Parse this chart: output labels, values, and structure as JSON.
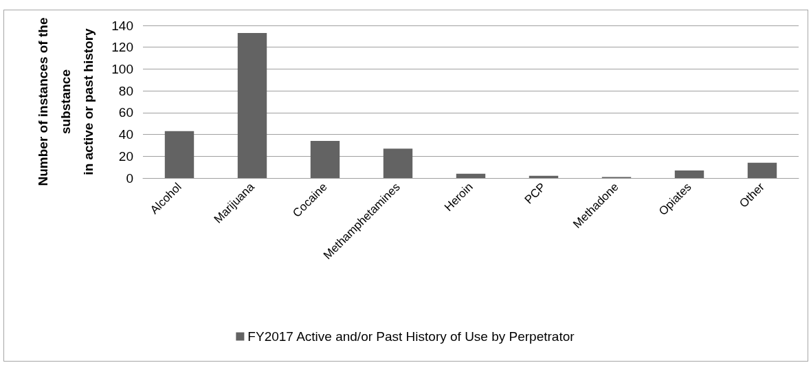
{
  "chart_data": {
    "type": "bar",
    "ylabel": "Number of instances of the\nsubstance\nin active or past history",
    "categories": [
      "Alcohol",
      "Marijuana",
      "Cocaine",
      "Methamphetamines",
      "Heroin",
      "PCP",
      "Methadone",
      "Opiates",
      "Other"
    ],
    "series": [
      {
        "name": "FY2017 Active and/or Past History of Use by Perpetrator",
        "color": "#636363",
        "values": [
          43,
          133,
          34,
          27,
          4,
          2,
          1,
          7,
          14
        ]
      }
    ],
    "ylim": [
      0,
      140
    ],
    "yticks": [
      0,
      20,
      40,
      60,
      80,
      100,
      120,
      140
    ],
    "grid": "y",
    "legend": "bottom"
  }
}
